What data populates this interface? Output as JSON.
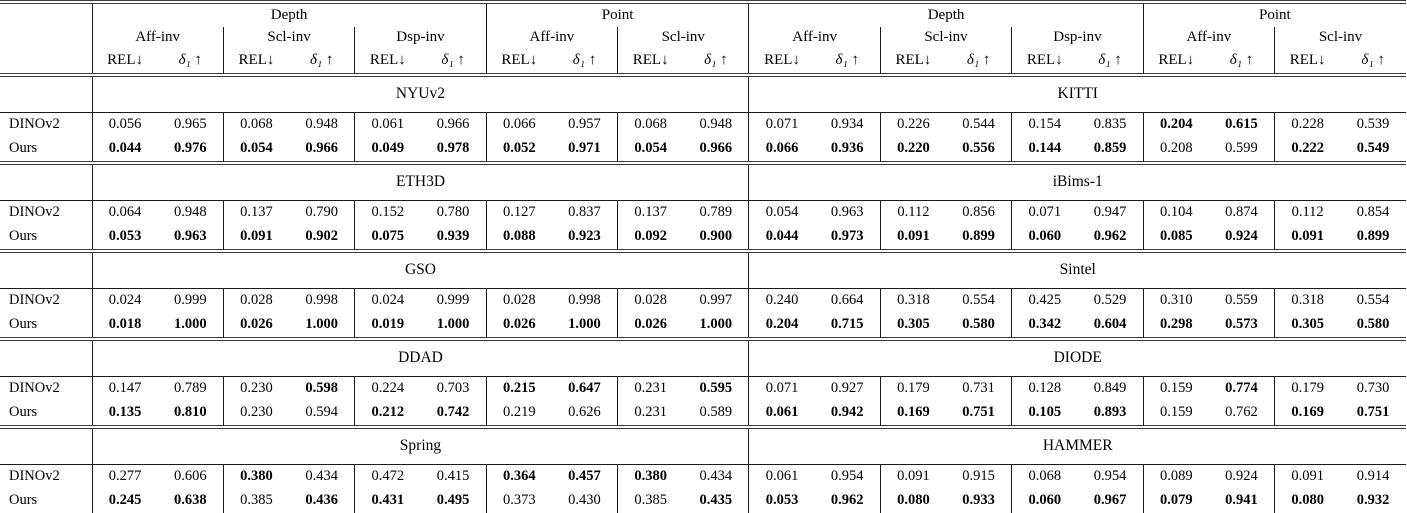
{
  "table": {
    "supergroups": [
      "Depth",
      "Point",
      "Depth",
      "Point"
    ],
    "groups": [
      "Aff-inv",
      "Scl-inv",
      "Dsp-inv",
      "Aff-inv",
      "Scl-inv",
      "Aff-inv",
      "Scl-inv",
      "Dsp-inv",
      "Aff-inv",
      "Scl-inv"
    ],
    "metrics": {
      "rel": "REL↓",
      "delta": "δ₁ ↑"
    },
    "sections": [
      {
        "datasets": [
          "NYUv2",
          "KITTI"
        ],
        "rows": [
          {
            "label": "DINOv2",
            "values": [
              "0.056",
              "0.965",
              "0.068",
              "0.948",
              "0.061",
              "0.966",
              "0.066",
              "0.957",
              "0.068",
              "0.948",
              "0.071",
              "0.934",
              "0.226",
              "0.544",
              "0.154",
              "0.835",
              "0.204",
              "0.615",
              "0.228",
              "0.539"
            ],
            "bold": [
              0,
              0,
              0,
              0,
              0,
              0,
              0,
              0,
              0,
              0,
              0,
              0,
              0,
              0,
              0,
              0,
              1,
              1,
              0,
              0
            ]
          },
          {
            "label": "Ours",
            "values": [
              "0.044",
              "0.976",
              "0.054",
              "0.966",
              "0.049",
              "0.978",
              "0.052",
              "0.971",
              "0.054",
              "0.966",
              "0.066",
              "0.936",
              "0.220",
              "0.556",
              "0.144",
              "0.859",
              "0.208",
              "0.599",
              "0.222",
              "0.549"
            ],
            "bold": [
              1,
              1,
              1,
              1,
              1,
              1,
              1,
              1,
              1,
              1,
              1,
              1,
              1,
              1,
              1,
              1,
              0,
              0,
              1,
              1
            ]
          }
        ]
      },
      {
        "datasets": [
          "ETH3D",
          "iBims-1"
        ],
        "rows": [
          {
            "label": "DINOv2",
            "values": [
              "0.064",
              "0.948",
              "0.137",
              "0.790",
              "0.152",
              "0.780",
              "0.127",
              "0.837",
              "0.137",
              "0.789",
              "0.054",
              "0.963",
              "0.112",
              "0.856",
              "0.071",
              "0.947",
              "0.104",
              "0.874",
              "0.112",
              "0.854"
            ],
            "bold": [
              0,
              0,
              0,
              0,
              0,
              0,
              0,
              0,
              0,
              0,
              0,
              0,
              0,
              0,
              0,
              0,
              0,
              0,
              0,
              0
            ]
          },
          {
            "label": "Ours",
            "values": [
              "0.053",
              "0.963",
              "0.091",
              "0.902",
              "0.075",
              "0.939",
              "0.088",
              "0.923",
              "0.092",
              "0.900",
              "0.044",
              "0.973",
              "0.091",
              "0.899",
              "0.060",
              "0.962",
              "0.085",
              "0.924",
              "0.091",
              "0.899"
            ],
            "bold": [
              1,
              1,
              1,
              1,
              1,
              1,
              1,
              1,
              1,
              1,
              1,
              1,
              1,
              1,
              1,
              1,
              1,
              1,
              1,
              1
            ]
          }
        ]
      },
      {
        "datasets": [
          "GSO",
          "Sintel"
        ],
        "rows": [
          {
            "label": "DINOv2",
            "values": [
              "0.024",
              "0.999",
              "0.028",
              "0.998",
              "0.024",
              "0.999",
              "0.028",
              "0.998",
              "0.028",
              "0.997",
              "0.240",
              "0.664",
              "0.318",
              "0.554",
              "0.425",
              "0.529",
              "0.310",
              "0.559",
              "0.318",
              "0.554"
            ],
            "bold": [
              0,
              0,
              0,
              0,
              0,
              0,
              0,
              0,
              0,
              0,
              0,
              0,
              0,
              0,
              0,
              0,
              0,
              0,
              0,
              0
            ]
          },
          {
            "label": "Ours",
            "values": [
              "0.018",
              "1.000",
              "0.026",
              "1.000",
              "0.019",
              "1.000",
              "0.026",
              "1.000",
              "0.026",
              "1.000",
              "0.204",
              "0.715",
              "0.305",
              "0.580",
              "0.342",
              "0.604",
              "0.298",
              "0.573",
              "0.305",
              "0.580"
            ],
            "bold": [
              1,
              1,
              1,
              1,
              1,
              1,
              1,
              1,
              1,
              1,
              1,
              1,
              1,
              1,
              1,
              1,
              1,
              1,
              1,
              1
            ]
          }
        ]
      },
      {
        "datasets": [
          "DDAD",
          "DIODE"
        ],
        "rows": [
          {
            "label": "DINOv2",
            "values": [
              "0.147",
              "0.789",
              "0.230",
              "0.598",
              "0.224",
              "0.703",
              "0.215",
              "0.647",
              "0.231",
              "0.595",
              "0.071",
              "0.927",
              "0.179",
              "0.731",
              "0.128",
              "0.849",
              "0.159",
              "0.774",
              "0.179",
              "0.730"
            ],
            "bold": [
              0,
              0,
              0,
              1,
              0,
              0,
              1,
              1,
              0,
              1,
              0,
              0,
              0,
              0,
              0,
              0,
              0,
              1,
              0,
              0
            ]
          },
          {
            "label": "Ours",
            "values": [
              "0.135",
              "0.810",
              "0.230",
              "0.594",
              "0.212",
              "0.742",
              "0.219",
              "0.626",
              "0.231",
              "0.589",
              "0.061",
              "0.942",
              "0.169",
              "0.751",
              "0.105",
              "0.893",
              "0.159",
              "0.762",
              "0.169",
              "0.751"
            ],
            "bold": [
              1,
              1,
              0,
              0,
              1,
              1,
              0,
              0,
              0,
              0,
              1,
              1,
              1,
              1,
              1,
              1,
              0,
              0,
              1,
              1
            ]
          }
        ]
      },
      {
        "datasets": [
          "Spring",
          "HAMMER"
        ],
        "rows": [
          {
            "label": "DINOv2",
            "values": [
              "0.277",
              "0.606",
              "0.380",
              "0.434",
              "0.472",
              "0.415",
              "0.364",
              "0.457",
              "0.380",
              "0.434",
              "0.061",
              "0.954",
              "0.091",
              "0.915",
              "0.068",
              "0.954",
              "0.089",
              "0.924",
              "0.091",
              "0.914"
            ],
            "bold": [
              0,
              0,
              1,
              0,
              0,
              0,
              1,
              1,
              1,
              0,
              0,
              0,
              0,
              0,
              0,
              0,
              0,
              0,
              0,
              0
            ]
          },
          {
            "label": "Ours",
            "values": [
              "0.245",
              "0.638",
              "0.385",
              "0.436",
              "0.431",
              "0.495",
              "0.373",
              "0.430",
              "0.385",
              "0.435",
              "0.053",
              "0.962",
              "0.080",
              "0.933",
              "0.060",
              "0.967",
              "0.079",
              "0.941",
              "0.080",
              "0.932"
            ],
            "bold": [
              1,
              1,
              0,
              1,
              1,
              1,
              0,
              0,
              0,
              1,
              1,
              1,
              1,
              1,
              1,
              1,
              1,
              1,
              1,
              1
            ]
          }
        ]
      }
    ]
  }
}
